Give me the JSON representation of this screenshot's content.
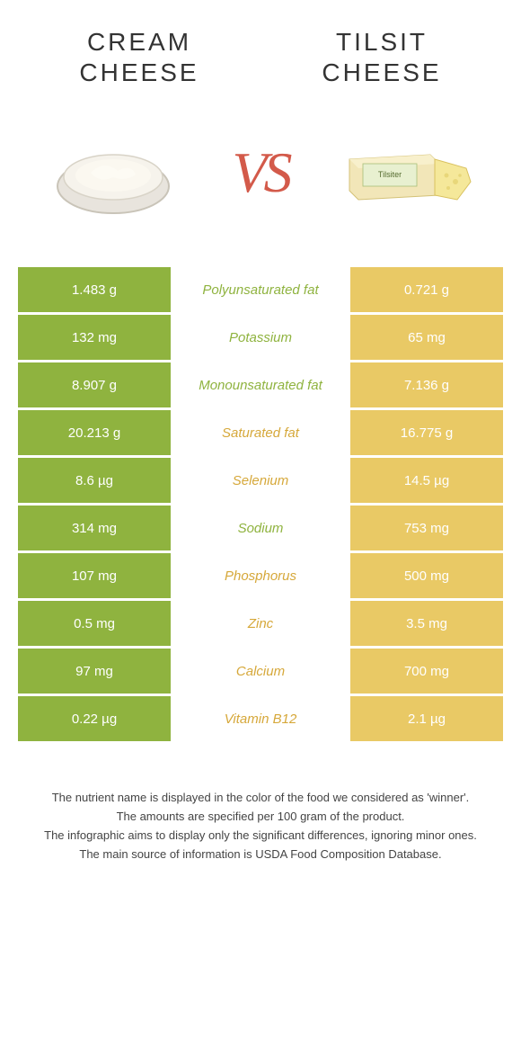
{
  "colors": {
    "left": "#8fb33f",
    "right": "#e9c965",
    "left_text": "#ffffff",
    "right_text": "#ffffff",
    "label_left": "#8fb33f",
    "label_right": "#d6a83a",
    "vs": "#d35a4a"
  },
  "titles": {
    "left_line1": "CREAM",
    "left_line2": "CHEESE",
    "right_line1": "TILSIT",
    "right_line2": "CHEESE"
  },
  "vs": "VS",
  "rows": [
    {
      "left": "1.483 g",
      "label": "Polyunsaturated fat",
      "right": "0.721 g",
      "winner": "left"
    },
    {
      "left": "132 mg",
      "label": "Potassium",
      "right": "65 mg",
      "winner": "left"
    },
    {
      "left": "8.907 g",
      "label": "Monounsaturated fat",
      "right": "7.136 g",
      "winner": "left"
    },
    {
      "left": "20.213 g",
      "label": "Saturated fat",
      "right": "16.775 g",
      "winner": "right"
    },
    {
      "left": "8.6 µg",
      "label": "Selenium",
      "right": "14.5 µg",
      "winner": "right"
    },
    {
      "left": "314 mg",
      "label": "Sodium",
      "right": "753 mg",
      "winner": "left"
    },
    {
      "left": "107 mg",
      "label": "Phosphorus",
      "right": "500 mg",
      "winner": "right"
    },
    {
      "left": "0.5 mg",
      "label": "Zinc",
      "right": "3.5 mg",
      "winner": "right"
    },
    {
      "left": "97 mg",
      "label": "Calcium",
      "right": "700 mg",
      "winner": "right"
    },
    {
      "left": "0.22 µg",
      "label": "Vitamin B12",
      "right": "2.1 µg",
      "winner": "right"
    }
  ],
  "footer": {
    "line1": "The nutrient name is displayed in the color of the food we considered as 'winner'.",
    "line2": "The amounts are specified per 100 gram of the product.",
    "line3": "The infographic aims to display only the significant differences, ignoring minor ones.",
    "line4": "The main source of information is USDA Food Composition Database."
  }
}
